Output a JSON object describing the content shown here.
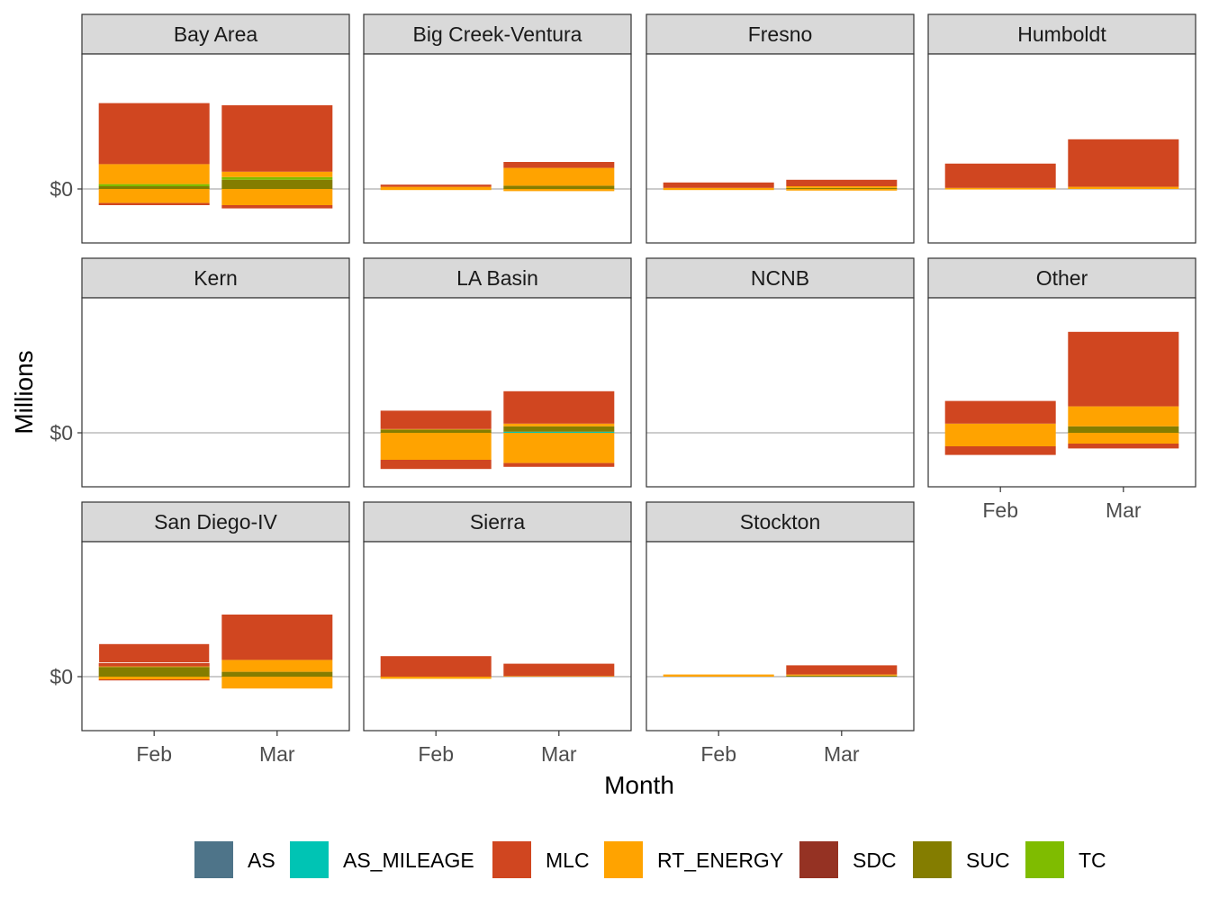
{
  "chart_data": {
    "type": "bar",
    "stacked": true,
    "facet": "region",
    "xlabel": "Month",
    "ylabel": "Millions",
    "y_tick_labels": [
      "$0"
    ],
    "categories": [
      "Feb",
      "Mar"
    ],
    "legend_position": "bottom",
    "components": [
      "AS",
      "AS_MILEAGE",
      "MLC",
      "RT_ENERGY",
      "SDC",
      "SUC",
      "TC"
    ],
    "colors": {
      "AS": "#4e7489",
      "AS_MILEAGE": "#00c4b4",
      "MLC": "#d04620",
      "RT_ENERGY": "#ffa300",
      "SDC": "#953223",
      "SUC": "#847d00",
      "TC": "#7fbc00"
    },
    "ylim": [
      -1.0,
      2.5
    ],
    "panels": [
      {
        "region": "Bay Area",
        "months": [
          {
            "month": "Feb",
            "SUC": 0.05,
            "TC": 0.04,
            "RT_ENERGY": 0.37,
            "MLC": 1.13,
            "neg": {
              "RT_ENERGY": -0.26,
              "MLC": -0.04
            }
          },
          {
            "month": "Mar",
            "TC": 0.05,
            "SUC": 0.17,
            "RT_ENERGY": 0.1,
            "MLC": 1.23,
            "neg": {
              "RT_ENERGY": -0.3,
              "MLC": -0.06
            }
          }
        ]
      },
      {
        "region": "Big Creek-Ventura",
        "months": [
          {
            "month": "Feb",
            "RT_ENERGY": 0.04,
            "MLC": 0.04,
            "neg": {
              "RT_ENERGY": -0.02
            }
          },
          {
            "month": "Mar",
            "SUC": 0.06,
            "RT_ENERGY": 0.33,
            "MLC": 0.11,
            "neg": {
              "RT_ENERGY": -0.04
            }
          }
        ]
      },
      {
        "region": "Fresno",
        "months": [
          {
            "month": "Feb",
            "RT_ENERGY": 0.02,
            "MLC": 0.1,
            "neg": {
              "RT_ENERGY": -0.02
            }
          },
          {
            "month": "Mar",
            "SUC": 0.02,
            "RT_ENERGY": 0.03,
            "MLC": 0.12,
            "neg": {
              "RT_ENERGY": -0.03
            }
          }
        ]
      },
      {
        "region": "Humboldt",
        "months": [
          {
            "month": "Feb",
            "RT_ENERGY": 0.02,
            "MLC": 0.45,
            "neg": {
              "RT_ENERGY": -0.01
            }
          },
          {
            "month": "Mar",
            "RT_ENERGY": 0.04,
            "MLC": 0.88,
            "neg": {}
          }
        ]
      },
      {
        "region": "Kern",
        "months": []
      },
      {
        "region": "LA Basin",
        "months": [
          {
            "month": "Feb",
            "RT_ENERGY": 0.01,
            "SUC": 0.06,
            "MLC": 0.34,
            "neg": {
              "RT_ENERGY": -0.5,
              "MLC": -0.17
            }
          },
          {
            "month": "Mar",
            "SUC": 0.1,
            "RT_ENERGY": 0.05,
            "MLC": 0.6,
            "AS_MILEAGE": 0.02,
            "neg": {
              "RT_ENERGY": -0.56,
              "MLC": -0.07
            }
          }
        ]
      },
      {
        "region": "NCNB",
        "months": []
      },
      {
        "region": "Other",
        "months": [
          {
            "month": "Feb",
            "RT_ENERGY": 0.17,
            "MLC": 0.42,
            "neg": {
              "RT_ENERGY": -0.25,
              "MLC": -0.16
            }
          },
          {
            "month": "Mar",
            "SUC": 0.12,
            "RT_ENERGY": 0.37,
            "MLC": 1.38,
            "neg": {
              "RT_ENERGY": -0.2,
              "MLC": -0.09
            }
          }
        ]
      },
      {
        "region": "San Diego-IV",
        "months": [
          {
            "month": "Feb",
            "RT_ENERGY": 0.01,
            "SUC": 0.18,
            "MLC": 0.07,
            "MLC_2": 0.35,
            "neg": {
              "RT_ENERGY": -0.05,
              "MLC": -0.02
            }
          },
          {
            "month": "Mar",
            "SUC": 0.09,
            "RT_ENERGY": 0.22,
            "MLC": 0.84,
            "neg": {
              "RT_ENERGY": -0.22
            }
          }
        ]
      },
      {
        "region": "Sierra",
        "months": [
          {
            "month": "Feb",
            "MLC": 0.38,
            "neg": {
              "RT_ENERGY": -0.04
            }
          },
          {
            "month": "Mar",
            "RT_ENERGY": 0.01,
            "MLC": 0.23,
            "neg": {}
          }
        ]
      },
      {
        "region": "Stockton",
        "months": [
          {
            "month": "Feb",
            "RT_ENERGY": 0.04,
            "neg": {}
          },
          {
            "month": "Mar",
            "SUC": 0.02,
            "RT_ENERGY": 0.02,
            "MLC": 0.17,
            "neg": {}
          }
        ]
      }
    ]
  }
}
